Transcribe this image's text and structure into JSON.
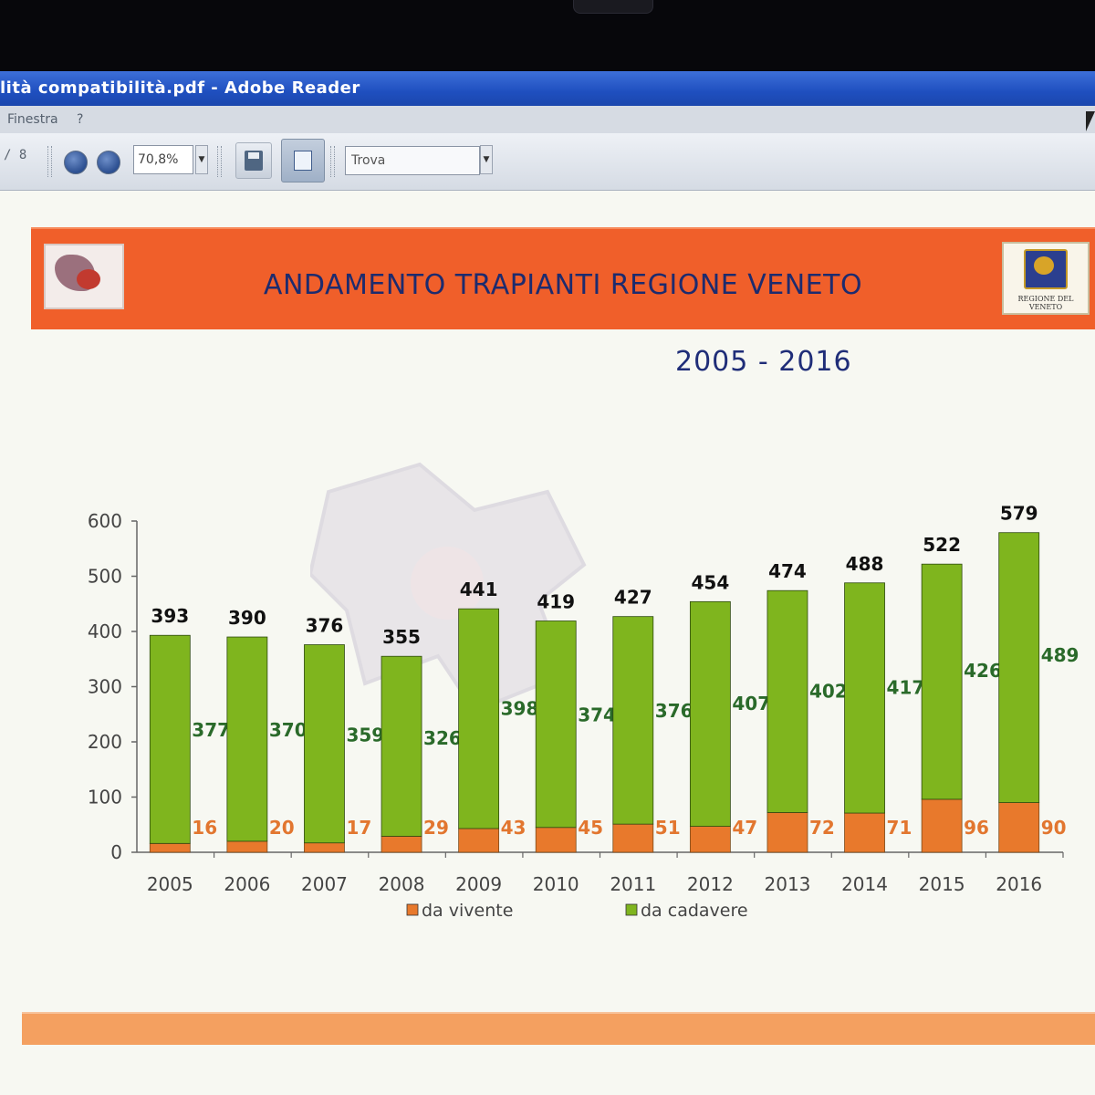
{
  "window": {
    "title": "lità compatibilità.pdf - Adobe Reader"
  },
  "menu": {
    "items": [
      "Finestra",
      "?"
    ]
  },
  "toolbar": {
    "page_count": "/ 8",
    "zoom_value": "70,8%",
    "search_placeholder": "Trova"
  },
  "document": {
    "banner_title": "ANDAMENTO TRAPIANTI REGIONE VENETO",
    "logo_right_label": "REGIONE DEL VENETO",
    "years": "2005 - 2016"
  },
  "colors": {
    "banner": "#f05f2a",
    "vivente": "#e8792c",
    "cadavere": "#7fb51e",
    "title_text": "#1d2b6e"
  },
  "chart_data": {
    "type": "bar",
    "stacked": true,
    "categories": [
      "2005",
      "2006",
      "2007",
      "2008",
      "2009",
      "2010",
      "2011",
      "2012",
      "2013",
      "2014",
      "2015",
      "2016"
    ],
    "series": [
      {
        "name": "da vivente",
        "values": [
          16,
          20,
          17,
          29,
          43,
          45,
          51,
          47,
          72,
          71,
          96,
          90
        ]
      },
      {
        "name": "da cadavere",
        "values": [
          377,
          370,
          359,
          326,
          398,
          374,
          376,
          407,
          402,
          417,
          426,
          489
        ]
      }
    ],
    "totals": [
      393,
      390,
      376,
      355,
      441,
      419,
      427,
      454,
      474,
      488,
      522,
      579
    ],
    "ylim": [
      0,
      600
    ],
    "yticks": [
      0,
      100,
      200,
      300,
      400,
      500,
      600
    ],
    "legend_position": "bottom"
  }
}
